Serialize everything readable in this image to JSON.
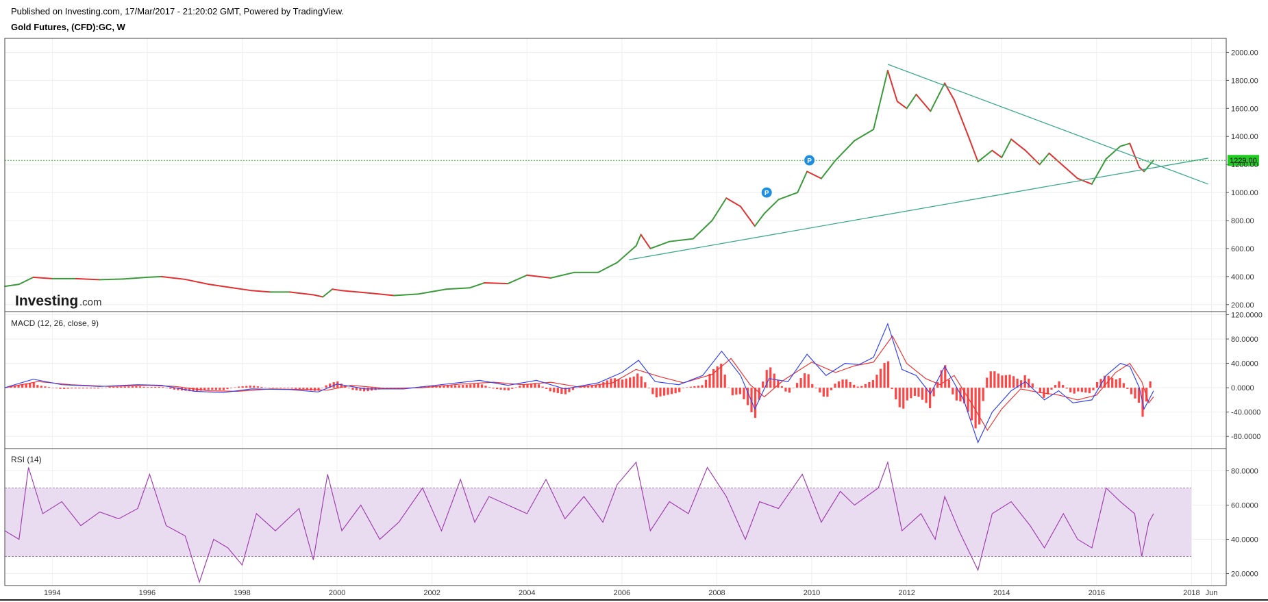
{
  "header": {
    "published": "Published on Investing.com, 17/Mar/2017 - 21:20:02 GMT, Powered by TradingView.",
    "symbol": "Gold Futures, (CFD):GC, W"
  },
  "logo": {
    "main": "Investing",
    "sub": ".com"
  },
  "colors": {
    "up": "#3a9a3a",
    "down": "#e03030",
    "trend": "#3aaa8a",
    "price_line": "#22bb22",
    "macd": "#3344ee",
    "signal": "#ee3333",
    "hist": "#ff4444",
    "rsi": "#a040b0",
    "rsi_band": "#eadcf0",
    "marker": "#1e8fe0",
    "grid": "#eeeeee"
  },
  "chart_data": [
    {
      "type": "line",
      "pane": "price",
      "title": "Gold Futures, (CFD):GC, W",
      "last_price_label": "1229.00",
      "last_price": 1229,
      "ylim": [
        150,
        2100
      ],
      "yticks": [
        "200.00",
        "400.00",
        "600.00",
        "800.00",
        "1000.00",
        "1200.00",
        "1400.00",
        "1600.00",
        "1800.00",
        "2000.00"
      ],
      "series": [
        {
          "points": [
            [
              1993.0,
              330
            ],
            [
              1993.3,
              345
            ],
            [
              1993.6,
              395
            ],
            [
              1994.0,
              385
            ],
            [
              1994.5,
              385
            ],
            [
              1995.0,
              378
            ],
            [
              1995.5,
              383
            ],
            [
              1996.0,
              395
            ],
            [
              1996.3,
              400
            ],
            [
              1996.8,
              380
            ],
            [
              1997.3,
              345
            ],
            [
              1997.8,
              320
            ],
            [
              1998.2,
              300
            ],
            [
              1998.6,
              290
            ],
            [
              1999.0,
              290
            ],
            [
              1999.5,
              270
            ],
            [
              1999.7,
              255
            ],
            [
              1999.9,
              310
            ],
            [
              2000.1,
              300
            ],
            [
              2000.6,
              285
            ],
            [
              2001.2,
              265
            ],
            [
              2001.7,
              275
            ],
            [
              2002.3,
              310
            ],
            [
              2002.8,
              320
            ],
            [
              2003.1,
              355
            ],
            [
              2003.6,
              350
            ],
            [
              2004.0,
              410
            ],
            [
              2004.5,
              390
            ],
            [
              2005.0,
              430
            ],
            [
              2005.5,
              430
            ],
            [
              2005.9,
              500
            ],
            [
              2006.3,
              620
            ],
            [
              2006.4,
              700
            ],
            [
              2006.6,
              600
            ],
            [
              2007.0,
              650
            ],
            [
              2007.5,
              670
            ],
            [
              2007.9,
              800
            ],
            [
              2008.2,
              960
            ],
            [
              2008.5,
              900
            ],
            [
              2008.8,
              760
            ],
            [
              2009.0,
              850
            ],
            [
              2009.3,
              950
            ],
            [
              2009.7,
              1000
            ],
            [
              2009.9,
              1150
            ],
            [
              2010.2,
              1100
            ],
            [
              2010.5,
              1230
            ],
            [
              2010.9,
              1370
            ],
            [
              2011.3,
              1450
            ],
            [
              2011.6,
              1870
            ],
            [
              2011.8,
              1650
            ],
            [
              2012.0,
              1600
            ],
            [
              2012.2,
              1700
            ],
            [
              2012.5,
              1580
            ],
            [
              2012.8,
              1780
            ],
            [
              2013.0,
              1660
            ],
            [
              2013.3,
              1400
            ],
            [
              2013.5,
              1220
            ],
            [
              2013.8,
              1300
            ],
            [
              2014.0,
              1250
            ],
            [
              2014.2,
              1380
            ],
            [
              2014.5,
              1300
            ],
            [
              2014.8,
              1200
            ],
            [
              2015.0,
              1280
            ],
            [
              2015.3,
              1190
            ],
            [
              2015.6,
              1100
            ],
            [
              2015.9,
              1060
            ],
            [
              2016.2,
              1240
            ],
            [
              2016.5,
              1330
            ],
            [
              2016.7,
              1350
            ],
            [
              2016.9,
              1180
            ],
            [
              2017.0,
              1150
            ],
            [
              2017.2,
              1230
            ]
          ]
        }
      ],
      "trendlines": [
        {
          "from": [
            2006.15,
            520
          ],
          "to": [
            2018.35,
            1245
          ]
        },
        {
          "from": [
            2011.6,
            1915
          ],
          "to": [
            2018.35,
            1060
          ]
        }
      ],
      "markers": [
        {
          "label": "P",
          "x": 2009.05,
          "y": 1000
        },
        {
          "label": "P",
          "x": 2009.95,
          "y": 1230
        }
      ]
    },
    {
      "type": "line",
      "pane": "macd",
      "title": "MACD (12, 26, close, 9)",
      "ylim": [
        -100,
        125
      ],
      "yticks": [
        "120.0000",
        "80.0000",
        "40.0000",
        "0.0000",
        "-40.0000",
        "-80.0000"
      ],
      "series": [
        {
          "name": "MACD",
          "points": [
            [
              1993.0,
              0
            ],
            [
              1993.6,
              14
            ],
            [
              1994.2,
              5
            ],
            [
              1995.0,
              2
            ],
            [
              1995.8,
              5
            ],
            [
              1996.3,
              4
            ],
            [
              1997.0,
              -6
            ],
            [
              1997.6,
              -8
            ],
            [
              1998.2,
              -2
            ],
            [
              1999.0,
              -3
            ],
            [
              1999.6,
              -7
            ],
            [
              2000.0,
              6
            ],
            [
              2000.6,
              -2
            ],
            [
              2001.4,
              -2
            ],
            [
              2002.3,
              6
            ],
            [
              2003.0,
              12
            ],
            [
              2003.6,
              4
            ],
            [
              2004.2,
              12
            ],
            [
              2004.8,
              -2
            ],
            [
              2005.5,
              8
            ],
            [
              2006.0,
              25
            ],
            [
              2006.35,
              45
            ],
            [
              2006.7,
              10
            ],
            [
              2007.2,
              5
            ],
            [
              2007.7,
              20
            ],
            [
              2008.1,
              60
            ],
            [
              2008.5,
              20
            ],
            [
              2008.8,
              -35
            ],
            [
              2009.1,
              15
            ],
            [
              2009.5,
              10
            ],
            [
              2009.9,
              55
            ],
            [
              2010.3,
              20
            ],
            [
              2010.7,
              40
            ],
            [
              2011.0,
              38
            ],
            [
              2011.3,
              50
            ],
            [
              2011.6,
              105
            ],
            [
              2011.9,
              30
            ],
            [
              2012.2,
              20
            ],
            [
              2012.5,
              -10
            ],
            [
              2012.8,
              35
            ],
            [
              2013.2,
              -20
            ],
            [
              2013.5,
              -90
            ],
            [
              2013.8,
              -40
            ],
            [
              2014.2,
              -5
            ],
            [
              2014.5,
              10
            ],
            [
              2014.9,
              -20
            ],
            [
              2015.2,
              -5
            ],
            [
              2015.5,
              -25
            ],
            [
              2015.9,
              -20
            ],
            [
              2016.2,
              20
            ],
            [
              2016.5,
              40
            ],
            [
              2016.7,
              35
            ],
            [
              2016.9,
              0
            ],
            [
              2017.0,
              -35
            ],
            [
              2017.2,
              -5
            ]
          ]
        },
        {
          "name": "Signal",
          "points": [
            [
              1993.0,
              0
            ],
            [
              1993.7,
              10
            ],
            [
              1994.4,
              5
            ],
            [
              1995.2,
              2
            ],
            [
              1996.0,
              4
            ],
            [
              1996.6,
              2
            ],
            [
              1997.3,
              -5
            ],
            [
              1997.9,
              -6
            ],
            [
              1998.6,
              -2
            ],
            [
              1999.4,
              -3
            ],
            [
              1999.8,
              -4
            ],
            [
              2000.3,
              4
            ],
            [
              2001.0,
              -1
            ],
            [
              2001.8,
              0
            ],
            [
              2002.6,
              6
            ],
            [
              2003.3,
              9
            ],
            [
              2003.9,
              5
            ],
            [
              2004.5,
              9
            ],
            [
              2005.1,
              1
            ],
            [
              2005.8,
              8
            ],
            [
              2006.3,
              30
            ],
            [
              2006.8,
              18
            ],
            [
              2007.3,
              8
            ],
            [
              2007.9,
              22
            ],
            [
              2008.3,
              48
            ],
            [
              2008.7,
              5
            ],
            [
              2009.0,
              -15
            ],
            [
              2009.4,
              12
            ],
            [
              2010.0,
              42
            ],
            [
              2010.5,
              25
            ],
            [
              2010.9,
              36
            ],
            [
              2011.3,
              42
            ],
            [
              2011.7,
              85
            ],
            [
              2012.0,
              40
            ],
            [
              2012.4,
              15
            ],
            [
              2012.7,
              5
            ],
            [
              2013.0,
              20
            ],
            [
              2013.4,
              -30
            ],
            [
              2013.7,
              -70
            ],
            [
              2014.0,
              -35
            ],
            [
              2014.4,
              -2
            ],
            [
              2014.8,
              -8
            ],
            [
              2015.2,
              -12
            ],
            [
              2015.6,
              -20
            ],
            [
              2016.0,
              -12
            ],
            [
              2016.4,
              25
            ],
            [
              2016.7,
              40
            ],
            [
              2016.95,
              10
            ],
            [
              2017.1,
              -25
            ],
            [
              2017.2,
              -15
            ]
          ]
        }
      ]
    },
    {
      "type": "line",
      "pane": "rsi",
      "title": "RSI (14)",
      "ylim": [
        13,
        93
      ],
      "yticks": [
        "80.0000",
        "60.0000",
        "40.0000",
        "20.0000"
      ],
      "band": [
        30,
        70
      ],
      "series": [
        {
          "name": "RSI",
          "points": [
            [
              1993.0,
              45
            ],
            [
              1993.3,
              40
            ],
            [
              1993.5,
              82
            ],
            [
              1993.8,
              55
            ],
            [
              1994.2,
              62
            ],
            [
              1994.6,
              48
            ],
            [
              1995.0,
              56
            ],
            [
              1995.4,
              52
            ],
            [
              1995.8,
              58
            ],
            [
              1996.05,
              78
            ],
            [
              1996.4,
              48
            ],
            [
              1996.8,
              42
            ],
            [
              1997.1,
              15
            ],
            [
              1997.4,
              40
            ],
            [
              1997.7,
              35
            ],
            [
              1998.0,
              25
            ],
            [
              1998.3,
              55
            ],
            [
              1998.7,
              45
            ],
            [
              1999.2,
              58
            ],
            [
              1999.5,
              28
            ],
            [
              1999.8,
              78
            ],
            [
              2000.1,
              45
            ],
            [
              2000.5,
              60
            ],
            [
              2000.9,
              40
            ],
            [
              2001.3,
              50
            ],
            [
              2001.8,
              70
            ],
            [
              2002.2,
              45
            ],
            [
              2002.6,
              75
            ],
            [
              2002.9,
              50
            ],
            [
              2003.2,
              65
            ],
            [
              2003.6,
              60
            ],
            [
              2004.0,
              55
            ],
            [
              2004.4,
              75
            ],
            [
              2004.8,
              52
            ],
            [
              2005.2,
              65
            ],
            [
              2005.6,
              50
            ],
            [
              2005.9,
              72
            ],
            [
              2006.3,
              85
            ],
            [
              2006.6,
              45
            ],
            [
              2007.0,
              62
            ],
            [
              2007.4,
              55
            ],
            [
              2007.8,
              82
            ],
            [
              2008.2,
              65
            ],
            [
              2008.6,
              40
            ],
            [
              2008.9,
              62
            ],
            [
              2009.3,
              58
            ],
            [
              2009.8,
              78
            ],
            [
              2010.2,
              50
            ],
            [
              2010.6,
              68
            ],
            [
              2010.9,
              60
            ],
            [
              2011.4,
              70
            ],
            [
              2011.6,
              85
            ],
            [
              2011.9,
              45
            ],
            [
              2012.3,
              55
            ],
            [
              2012.6,
              40
            ],
            [
              2012.8,
              65
            ],
            [
              2013.1,
              45
            ],
            [
              2013.5,
              22
            ],
            [
              2013.8,
              55
            ],
            [
              2014.2,
              62
            ],
            [
              2014.6,
              48
            ],
            [
              2014.9,
              35
            ],
            [
              2015.3,
              55
            ],
            [
              2015.6,
              40
            ],
            [
              2015.9,
              35
            ],
            [
              2016.2,
              70
            ],
            [
              2016.5,
              62
            ],
            [
              2016.8,
              55
            ],
            [
              2016.95,
              30
            ],
            [
              2017.1,
              50
            ],
            [
              2017.2,
              55
            ]
          ]
        }
      ]
    }
  ],
  "x_axis": {
    "labels": [
      "1994",
      "1996",
      "1998",
      "2000",
      "2002",
      "2004",
      "2006",
      "2008",
      "2010",
      "2012",
      "2014",
      "2016",
      "2018",
      "Jun"
    ],
    "values": [
      1994,
      1996,
      1998,
      2000,
      2002,
      2004,
      2006,
      2008,
      2010,
      2012,
      2014,
      2016,
      2018,
      2018.42
    ]
  }
}
